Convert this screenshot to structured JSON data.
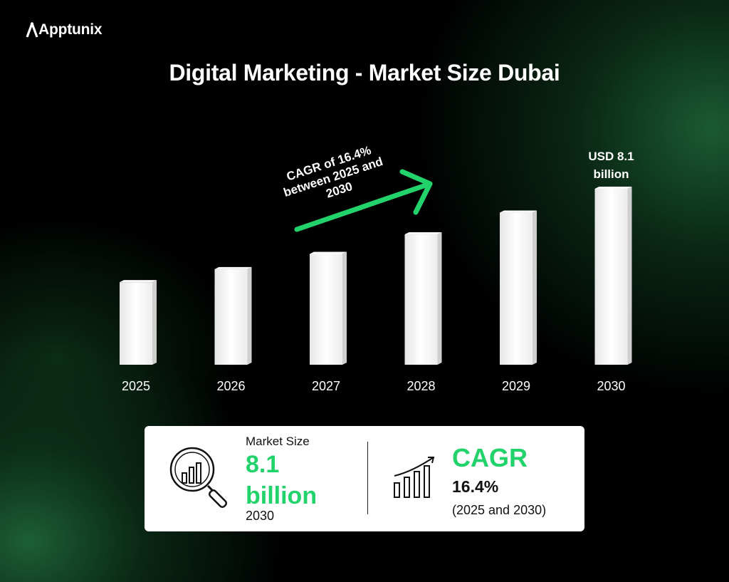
{
  "brand": {
    "name": "Apptunix"
  },
  "page": {
    "title": "Digital Marketing - Market Size Dubai"
  },
  "chart_data": {
    "type": "bar",
    "title": "Digital Marketing - Market Size Dubai",
    "categories": [
      "2025",
      "2026",
      "2027",
      "2028",
      "2029",
      "2030"
    ],
    "values": [
      3.8,
      4.4,
      5.1,
      6.0,
      7.0,
      8.1
    ],
    "ylim": [
      0,
      8.1
    ],
    "top_label": [
      "USD 8.1",
      "billion"
    ],
    "annotation": [
      "CAGR of 16.4%",
      "between 2025 and",
      "2030"
    ],
    "grid": false,
    "bar_color": "#f2f2f2",
    "arrow_color": "#22d36b"
  },
  "summary": {
    "market_size_label": "Market Size",
    "market_size_value_line1": "8.1",
    "market_size_value_line2": "billion",
    "market_size_year": "2030",
    "cagr_title": "CAGR",
    "cagr_value": "16.4%",
    "cagr_range": "(2025 and 2030)",
    "accent_color": "#22d36b"
  },
  "icons": [
    "apptunix-logo-icon",
    "magnifier-chart-icon",
    "growth-bars-icon"
  ]
}
